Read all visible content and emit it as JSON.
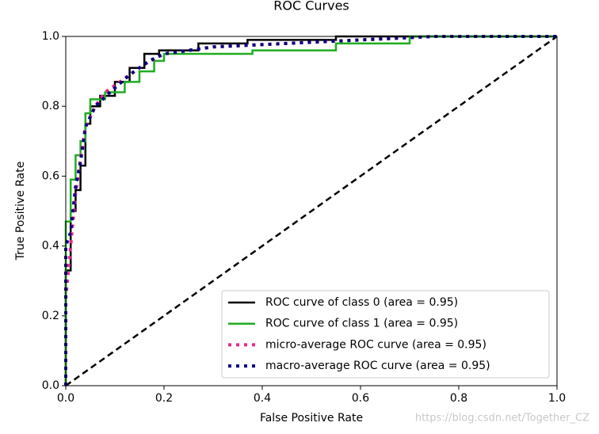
{
  "chart_data": {
    "type": "line",
    "title": "ROC Curves",
    "x_label": "False Positive Rate",
    "y_label": "True Positive Rate",
    "xlim": [
      0,
      1
    ],
    "ylim": [
      0,
      1
    ],
    "xticks": [
      {
        "value": 0,
        "label": "0.0"
      },
      0.2,
      0.4,
      0.6,
      0.8,
      {
        "value": 1,
        "label": "1.0"
      }
    ],
    "yticks": [
      {
        "value": 0,
        "label": "0.0"
      },
      0.2,
      0.4,
      0.6,
      0.8,
      {
        "value": 1,
        "label": "1.0"
      }
    ],
    "legend": "lower right",
    "series": [
      {
        "name": "ROC curve of class 0 (area = 0.95)",
        "color": "#000000",
        "style": "solid",
        "x": [
          0,
          0,
          0.01,
          0.01,
          0.02,
          0.02,
          0.03,
          0.03,
          0.04,
          0.04,
          0.05,
          0.05,
          0.07,
          0.07,
          0.1,
          0.1,
          0.13,
          0.13,
          0.16,
          0.16,
          0.19,
          0.19,
          0.27,
          0.27,
          0.37,
          0.37,
          0.55,
          0.55,
          1.0
        ],
        "values": [
          0,
          0.33,
          0.33,
          0.5,
          0.5,
          0.56,
          0.56,
          0.63,
          0.63,
          0.75,
          0.75,
          0.8,
          0.8,
          0.83,
          0.83,
          0.87,
          0.87,
          0.91,
          0.91,
          0.95,
          0.95,
          0.96,
          0.96,
          0.98,
          0.98,
          0.99,
          0.99,
          1.0,
          1.0
        ]
      },
      {
        "name": "ROC curve of class 1 (area = 0.95)",
        "color": "#1fad1f",
        "style": "solid",
        "x": [
          0,
          0,
          0.01,
          0.01,
          0.02,
          0.02,
          0.03,
          0.03,
          0.04,
          0.04,
          0.05,
          0.05,
          0.08,
          0.08,
          0.12,
          0.12,
          0.15,
          0.15,
          0.18,
          0.18,
          0.2,
          0.2,
          0.38,
          0.38,
          0.55,
          0.55,
          0.7,
          0.7,
          1.0
        ],
        "values": [
          0,
          0.47,
          0.47,
          0.59,
          0.59,
          0.66,
          0.66,
          0.7,
          0.7,
          0.78,
          0.78,
          0.82,
          0.82,
          0.84,
          0.84,
          0.87,
          0.87,
          0.9,
          0.9,
          0.93,
          0.93,
          0.95,
          0.95,
          0.96,
          0.96,
          0.98,
          0.98,
          1.0,
          1.0
        ]
      },
      {
        "name": "micro-average ROC curve (area = 0.95)",
        "color": "#e7298a",
        "style": "dotted",
        "x": [
          0,
          0,
          0.01,
          0.02,
          0.03,
          0.04,
          0.06,
          0.08,
          0.12,
          0.16,
          0.2,
          0.3,
          0.45,
          0.6,
          0.75,
          1.0
        ],
        "values": [
          0,
          0.25,
          0.4,
          0.55,
          0.65,
          0.74,
          0.8,
          0.84,
          0.88,
          0.92,
          0.95,
          0.97,
          0.98,
          0.99,
          1.0,
          1.0
        ]
      },
      {
        "name": "macro-average ROC curve (area = 0.95)",
        "color": "#000080",
        "style": "dotted",
        "x": [
          0,
          0,
          0.01,
          0.02,
          0.03,
          0.04,
          0.06,
          0.09,
          0.13,
          0.17,
          0.2,
          0.3,
          0.45,
          0.6,
          0.75,
          1.0
        ],
        "values": [
          0,
          0.4,
          0.44,
          0.57,
          0.64,
          0.74,
          0.8,
          0.84,
          0.89,
          0.93,
          0.95,
          0.97,
          0.98,
          0.99,
          1.0,
          1.0
        ]
      }
    ],
    "reference_line": {
      "color": "#000000",
      "x": [
        0,
        1
      ],
      "values": [
        0,
        1
      ]
    }
  },
  "watermark": "https://blog.csdn.net/Together_CZ"
}
